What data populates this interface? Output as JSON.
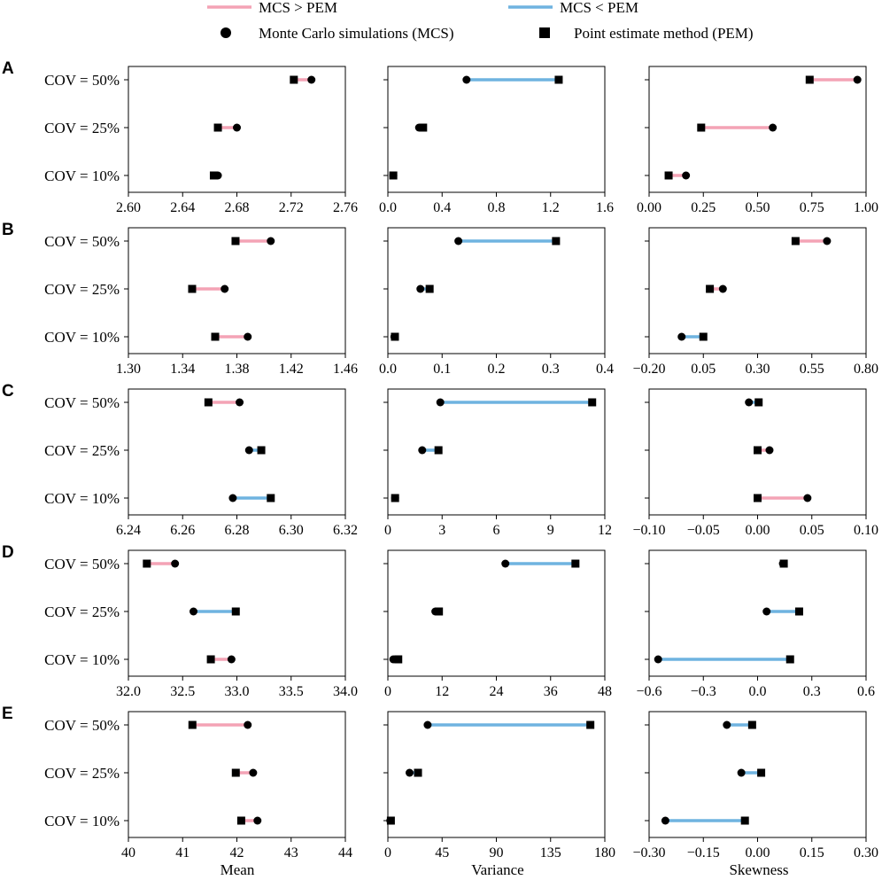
{
  "legend": {
    "greater": {
      "label": "MCS > PEM",
      "color": "#f4a3b5"
    },
    "less": {
      "label": "MCS < PEM",
      "color": "#6fb3e0"
    },
    "mcs": {
      "label": "Monte Carlo simulations (MCS)",
      "marker": "circle"
    },
    "pem": {
      "label": "Point estimate method (PEM)",
      "marker": "square"
    }
  },
  "row_labels": [
    "COV = 50%",
    "COV = 25%",
    "COV = 10%"
  ],
  "column_xlabels": [
    "Mean",
    "Variance",
    "Skewness"
  ],
  "chart_data": [
    {
      "type": "dumbbell",
      "panel": "A",
      "xlabel": "Mean",
      "xlim": [
        2.6,
        2.76
      ],
      "ticks": [
        2.6,
        2.64,
        2.68,
        2.72,
        2.76
      ],
      "tick_labels": [
        "2.60",
        "2.64",
        "2.68",
        "2.72",
        "2.76"
      ],
      "categories": [
        "COV = 50%",
        "COV = 25%",
        "COV = 10%"
      ],
      "mcs": [
        2.735,
        2.68,
        2.666
      ],
      "pem": [
        2.722,
        2.666,
        2.663
      ]
    },
    {
      "type": "dumbbell",
      "panel": "A",
      "xlabel": "Variance",
      "xlim": [
        0,
        1.6
      ],
      "ticks": [
        0,
        0.4,
        0.8,
        1.2,
        1.6
      ],
      "tick_labels": [
        "0.0",
        "0.4",
        "0.8",
        "1.2",
        "1.6"
      ],
      "categories": [
        "COV = 50%",
        "COV = 25%",
        "COV = 10%"
      ],
      "mcs": [
        0.58,
        0.23,
        0.04
      ],
      "pem": [
        1.26,
        0.26,
        0.04
      ]
    },
    {
      "type": "dumbbell",
      "panel": "A",
      "xlabel": "Skewness",
      "xlim": [
        0,
        1
      ],
      "ticks": [
        0,
        0.25,
        0.5,
        0.75,
        1
      ],
      "tick_labels": [
        "0.00",
        "0.25",
        "0.50",
        "0.75",
        "1.00"
      ],
      "categories": [
        "COV = 50%",
        "COV = 25%",
        "COV = 10%"
      ],
      "mcs": [
        0.96,
        0.57,
        0.17
      ],
      "pem": [
        0.74,
        0.24,
        0.09
      ]
    },
    {
      "type": "dumbbell",
      "panel": "B",
      "xlabel": "Mean",
      "xlim": [
        1.3,
        1.46
      ],
      "ticks": [
        1.3,
        1.34,
        1.38,
        1.42,
        1.46
      ],
      "tick_labels": [
        "1.30",
        "1.34",
        "1.38",
        "1.42",
        "1.46"
      ],
      "categories": [
        "COV = 50%",
        "COV = 25%",
        "COV = 10%"
      ],
      "mcs": [
        1.405,
        1.371,
        1.388
      ],
      "pem": [
        1.379,
        1.347,
        1.364
      ]
    },
    {
      "type": "dumbbell",
      "panel": "B",
      "xlabel": "Variance",
      "xlim": [
        0,
        0.4
      ],
      "ticks": [
        0,
        0.1,
        0.2,
        0.3,
        0.4
      ],
      "tick_labels": [
        "0.0",
        "0.1",
        "0.2",
        "0.3",
        "0.4"
      ],
      "categories": [
        "COV = 50%",
        "COV = 25%",
        "COV = 10%"
      ],
      "mcs": [
        0.13,
        0.06,
        0.012
      ],
      "pem": [
        0.31,
        0.077,
        0.013
      ]
    },
    {
      "type": "dumbbell",
      "panel": "B",
      "xlabel": "Skewness",
      "xlim": [
        -0.2,
        0.8
      ],
      "ticks": [
        -0.2,
        0.05,
        0.3,
        0.55,
        0.8
      ],
      "tick_labels": [
        "−0.20",
        "0.05",
        "0.30",
        "0.55",
        "0.80"
      ],
      "categories": [
        "COV = 50%",
        "COV = 25%",
        "COV = 10%"
      ],
      "mcs": [
        0.62,
        0.14,
        -0.05
      ],
      "pem": [
        0.475,
        0.08,
        0.05
      ]
    },
    {
      "type": "dumbbell",
      "panel": "C",
      "xlabel": "Mean",
      "xlim": [
        6.24,
        6.32
      ],
      "ticks": [
        6.24,
        6.26,
        6.28,
        6.3,
        6.32
      ],
      "tick_labels": [
        "6.24",
        "6.26",
        "6.28",
        "6.30",
        "6.32"
      ],
      "categories": [
        "COV = 50%",
        "COV = 25%",
        "COV = 10%"
      ],
      "mcs": [
        6.281,
        6.2845,
        6.2785
      ],
      "pem": [
        6.2695,
        6.289,
        6.2925
      ]
    },
    {
      "type": "dumbbell",
      "panel": "C",
      "xlabel": "Variance",
      "xlim": [
        0,
        12
      ],
      "ticks": [
        0,
        3,
        6,
        9,
        12
      ],
      "tick_labels": [
        "0",
        "3",
        "6",
        "9",
        "12"
      ],
      "categories": [
        "COV = 50%",
        "COV = 25%",
        "COV = 10%"
      ],
      "mcs": [
        2.9,
        1.9,
        0.4
      ],
      "pem": [
        11.3,
        2.8,
        0.4
      ]
    },
    {
      "type": "dumbbell",
      "panel": "C",
      "xlabel": "Skewness",
      "xlim": [
        -0.1,
        0.1
      ],
      "ticks": [
        -0.1,
        -0.05,
        0,
        0.05,
        0.1
      ],
      "tick_labels": [
        "−0.10",
        "−0.05",
        "0.00",
        "0.05",
        "0.10"
      ],
      "categories": [
        "COV = 50%",
        "COV = 25%",
        "COV = 10%"
      ],
      "mcs": [
        -0.008,
        0.011,
        0.046
      ],
      "pem": [
        0.001,
        0.0,
        0.0
      ]
    },
    {
      "type": "dumbbell",
      "panel": "D",
      "xlabel": "Mean",
      "xlim": [
        32,
        34
      ],
      "ticks": [
        32,
        32.5,
        33,
        33.5,
        34
      ],
      "tick_labels": [
        "32.0",
        "32.5",
        "33.0",
        "33.5",
        "34.0"
      ],
      "categories": [
        "COV = 50%",
        "COV = 25%",
        "COV = 10%"
      ],
      "mcs": [
        32.43,
        32.6,
        32.95
      ],
      "pem": [
        32.17,
        32.99,
        32.76
      ]
    },
    {
      "type": "dumbbell",
      "panel": "D",
      "xlabel": "Variance",
      "xlim": [
        0,
        48
      ],
      "ticks": [
        0,
        12,
        24,
        36,
        48
      ],
      "tick_labels": [
        "0",
        "12",
        "24",
        "36",
        "48"
      ],
      "categories": [
        "COV = 50%",
        "COV = 25%",
        "COV = 10%"
      ],
      "mcs": [
        26,
        10.5,
        1.2
      ],
      "pem": [
        41.5,
        11.3,
        2.3
      ]
    },
    {
      "type": "dumbbell",
      "panel": "D",
      "xlabel": "Skewness",
      "xlim": [
        -0.6,
        0.6
      ],
      "ticks": [
        -0.6,
        -0.3,
        0,
        0.3,
        0.6
      ],
      "tick_labels": [
        "−0.6",
        "−0.3",
        "0.0",
        "0.3",
        "0.6"
      ],
      "categories": [
        "COV = 50%",
        "COV = 25%",
        "COV = 10%"
      ],
      "mcs": [
        0.14,
        0.05,
        -0.55
      ],
      "pem": [
        0.145,
        0.23,
        0.18
      ]
    },
    {
      "type": "dumbbell",
      "panel": "E",
      "xlabel": "Mean",
      "xlim": [
        40,
        44
      ],
      "ticks": [
        40,
        41,
        42,
        43,
        44
      ],
      "tick_labels": [
        "40",
        "41",
        "42",
        "43",
        "44"
      ],
      "categories": [
        "COV = 50%",
        "COV = 25%",
        "COV = 10%"
      ],
      "mcs": [
        42.2,
        42.3,
        42.38
      ],
      "pem": [
        41.18,
        41.98,
        42.08
      ]
    },
    {
      "type": "dumbbell",
      "panel": "E",
      "xlabel": "Variance",
      "xlim": [
        0,
        180
      ],
      "ticks": [
        0,
        45,
        90,
        135,
        180
      ],
      "tick_labels": [
        "0",
        "45",
        "90",
        "135",
        "180"
      ],
      "categories": [
        "COV = 50%",
        "COV = 25%",
        "COV = 10%"
      ],
      "mcs": [
        33,
        18,
        2
      ],
      "pem": [
        168,
        25,
        2.5
      ]
    },
    {
      "type": "dumbbell",
      "panel": "E",
      "xlabel": "Skewness",
      "xlim": [
        -0.3,
        0.3
      ],
      "ticks": [
        -0.3,
        -0.15,
        0,
        0.15,
        0.3
      ],
      "tick_labels": [
        "−0.30",
        "−0.15",
        "0.00",
        "0.15",
        "0.30"
      ],
      "categories": [
        "COV = 50%",
        "COV = 25%",
        "COV = 10%"
      ],
      "mcs": [
        -0.085,
        -0.045,
        -0.255
      ],
      "pem": [
        -0.015,
        0.01,
        -0.035
      ]
    }
  ]
}
